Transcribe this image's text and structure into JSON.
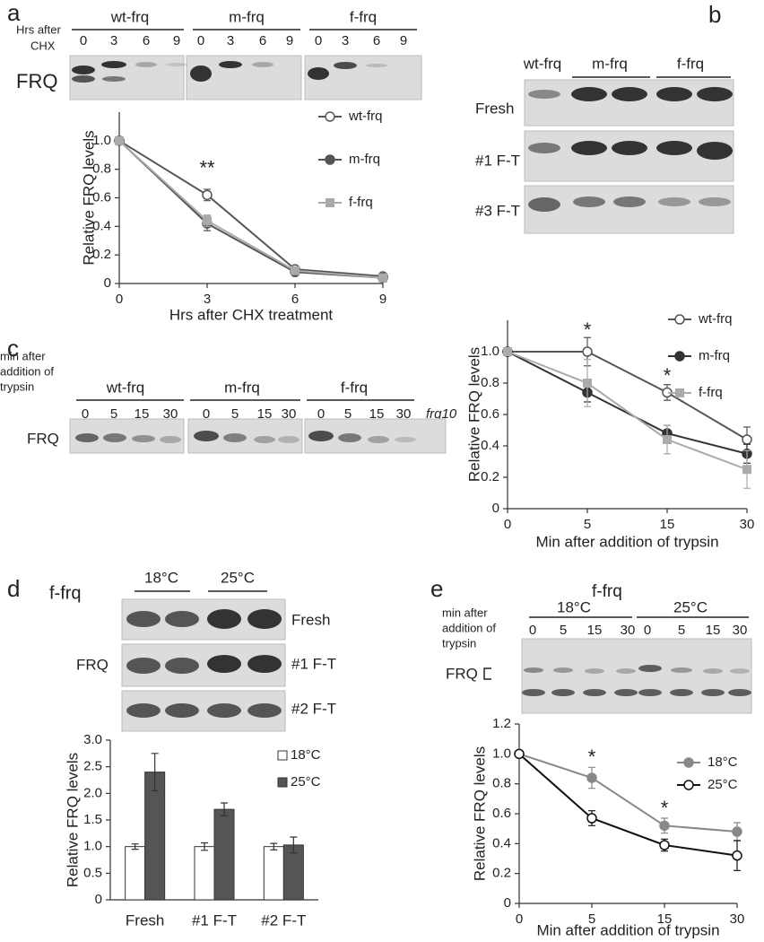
{
  "panels": [
    "a",
    "b",
    "c",
    "d",
    "e"
  ],
  "blot_a": {
    "header": [
      "Hrs after",
      "CHX"
    ],
    "groups": [
      "wt-frq",
      "m-frq",
      "f-frq"
    ],
    "lanes": [
      "0",
      "3",
      "6",
      "9"
    ],
    "row": "FRQ"
  },
  "blot_b": {
    "groups": [
      "wt-frq",
      "m-frq",
      "f-frq"
    ],
    "rows": [
      "Fresh",
      "#1 F-T",
      "#3 F-T"
    ]
  },
  "blot_c": {
    "header": [
      "min after",
      "addition of",
      "trypsin"
    ],
    "groups": [
      "wt-frq",
      "m-frq",
      "f-frq"
    ],
    "lanes": [
      "0",
      "5",
      "15",
      "30"
    ],
    "extra": "frq10",
    "row": "FRQ"
  },
  "blot_d": {
    "strain": "f-frq",
    "groups": [
      "18°C",
      "25°C"
    ],
    "rows": [
      "Fresh",
      "#1 F-T",
      "#2 F-T"
    ],
    "side": "FRQ"
  },
  "blot_e": {
    "header": [
      "min after",
      "addition of",
      "trypsin"
    ],
    "strain": "f-frq",
    "groups": [
      "18°C",
      "25°C"
    ],
    "lanes": [
      "0",
      "5",
      "15",
      "30"
    ],
    "row": "FRQ"
  },
  "chart_data": [
    {
      "type": "line",
      "x_label": "Hrs after CHX treatment",
      "y_label": "Relative FRQ levels",
      "x": [
        0,
        3,
        6,
        9
      ],
      "xlim": [
        0,
        9
      ],
      "xticks": [
        0,
        3,
        6,
        9
      ],
      "ylim": [
        0,
        1.2
      ],
      "yticks": [
        0,
        0.2,
        0.4,
        0.6,
        0.8,
        {
          "value": 1,
          "label": "1.0"
        }
      ],
      "series": [
        {
          "name": "wt-frq",
          "color": "#555555",
          "marker": "open-circle",
          "values": [
            1,
            0.62,
            0.1,
            0.05
          ],
          "errors": [
            null,
            0.04,
            0.02,
            0.02
          ]
        },
        {
          "name": "m-frq",
          "color": "#555555",
          "marker": "circle",
          "values": [
            1,
            0.42,
            0.08,
            0.04
          ],
          "errors": [
            null,
            0.05,
            0.02,
            0.01
          ]
        },
        {
          "name": "f-frq",
          "color": "#aaaaaa",
          "marker": "square",
          "values": [
            1,
            0.44,
            0.09,
            0.04
          ],
          "errors": [
            null,
            0.04,
            0.02,
            0.02
          ]
        }
      ],
      "annotations": [
        {
          "text": "**",
          "x": 3,
          "y": 0.8
        }
      ]
    },
    {
      "type": "line",
      "x_label": "Min after addition of trypsin",
      "y_label": "Relative FRQ levels",
      "categories": [
        "0",
        "5",
        "15",
        "30"
      ],
      "ylim": [
        0,
        1.2
      ],
      "yticks": [
        0,
        0.2,
        0.4,
        0.6,
        0.8,
        {
          "value": 1,
          "label": "1.0"
        }
      ],
      "series": [
        {
          "name": "wt-frq",
          "color": "#555555",
          "marker": "open-circle",
          "values": [
            1,
            1,
            0.74,
            0.44
          ],
          "errors": [
            null,
            0.09,
            0.05,
            0.08
          ]
        },
        {
          "name": "m-frq",
          "color": "#333333",
          "marker": "circle",
          "values": [
            1,
            0.74,
            0.48,
            0.35
          ],
          "errors": [
            null,
            0.06,
            0.05,
            0.06
          ]
        },
        {
          "name": "f-frq",
          "color": "#aaaaaa",
          "marker": "square",
          "values": [
            1,
            0.8,
            0.44,
            0.25
          ],
          "errors": [
            null,
            0.15,
            0.09,
            0.12
          ]
        }
      ],
      "annotations": [
        {
          "text": "*",
          "x": "5",
          "y": 1.13
        },
        {
          "text": "*",
          "x": "15",
          "y": 0.84
        }
      ]
    },
    {
      "type": "bar",
      "y_label": "Relative FRQ levels",
      "categories": [
        "Fresh",
        "#1 F-T",
        "#2 F-T"
      ],
      "ylim": [
        0,
        3
      ],
      "yticks": [
        0,
        0.5,
        {
          "value": 1,
          "label": "1.0"
        },
        1.5,
        {
          "value": 2,
          "label": "2.0"
        },
        2.5,
        {
          "value": 3,
          "label": "3.0"
        }
      ],
      "series": [
        {
          "name": "18°C",
          "color": "#ffffff",
          "values": [
            1,
            1,
            1
          ],
          "errors": [
            0.05,
            0.07,
            0.06
          ]
        },
        {
          "name": "25°C",
          "color": "#555555",
          "values": [
            2.4,
            1.7,
            1.03
          ],
          "errors": [
            0.35,
            0.12,
            0.15
          ]
        }
      ]
    },
    {
      "type": "line",
      "x_label": "Min after addition of trypsin",
      "y_label": "Relative FRQ levels",
      "categories": [
        "0",
        "5",
        "15",
        "30"
      ],
      "ylim": [
        0,
        1.2
      ],
      "yticks": [
        0,
        0.2,
        0.4,
        0.6,
        0.8,
        {
          "value": 1,
          "label": "1.0"
        },
        1.2
      ],
      "series": [
        {
          "name": "18°C",
          "color": "#888888",
          "marker": "circle",
          "values": [
            1,
            0.84,
            0.52,
            0.48
          ],
          "errors": [
            null,
            0.07,
            0.05,
            0.06
          ]
        },
        {
          "name": "25°C",
          "color": "#111111",
          "marker": "open-circle",
          "values": [
            1,
            0.57,
            0.39,
            0.32
          ],
          "errors": [
            null,
            0.05,
            0.04,
            0.1
          ]
        }
      ],
      "annotations": [
        {
          "text": "*",
          "x": "5",
          "y": 0.97
        },
        {
          "text": "*",
          "x": "15",
          "y": 0.63
        }
      ]
    }
  ]
}
